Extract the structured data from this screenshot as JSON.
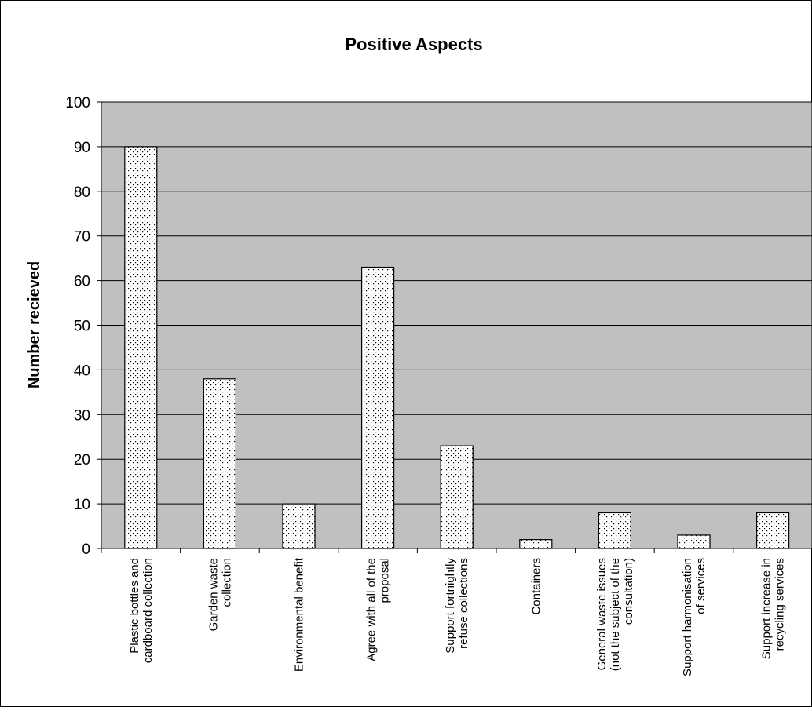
{
  "chart_data": {
    "type": "bar",
    "title": "Positive Aspects",
    "xlabel": "",
    "ylabel": "Number recieved",
    "ylim": [
      0,
      100
    ],
    "yticks": [
      0,
      10,
      20,
      30,
      40,
      50,
      60,
      70,
      80,
      90,
      100
    ],
    "grid": true,
    "categories": [
      [
        "Plastic bottles and",
        "cardboard collection"
      ],
      [
        "Garden waste",
        "collection"
      ],
      [
        "Environmental benefit"
      ],
      [
        "Agree with all of the",
        "proposal"
      ],
      [
        "Support fortnightly",
        "refuse collections"
      ],
      [
        "Containers"
      ],
      [
        "General waste issues",
        "(not the subject of the",
        "consultation)"
      ],
      [
        "Support harmonisation",
        "of services"
      ],
      [
        "Support increase in",
        "recycling services"
      ]
    ],
    "values": [
      90,
      38,
      10,
      63,
      23,
      2,
      8,
      3,
      8
    ],
    "colors": {
      "plot_background": "#c0c0c0",
      "bar_fill": "#ffffff",
      "bar_dots": "#000000",
      "gridline": "#000000"
    }
  }
}
